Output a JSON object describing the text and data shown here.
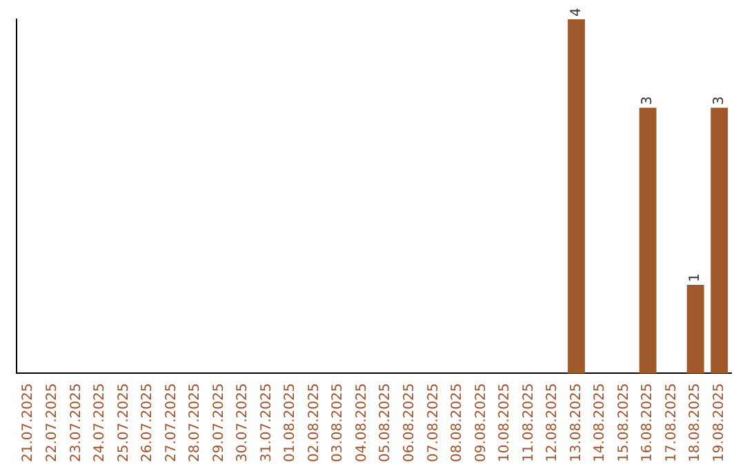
{
  "chart_data": {
    "type": "bar",
    "categories": [
      "21.07.2025",
      "22.07.2025",
      "23.07.2025",
      "24.07.2025",
      "25.07.2025",
      "26.07.2025",
      "27.07.2025",
      "28.07.2025",
      "29.07.2025",
      "30.07.2025",
      "31.07.2025",
      "01.08.2025",
      "02.08.2025",
      "03.08.2025",
      "04.08.2025",
      "05.08.2025",
      "06.08.2025",
      "07.08.2025",
      "08.08.2025",
      "09.08.2025",
      "10.08.2025",
      "11.08.2025",
      "12.08.2025",
      "13.08.2025",
      "14.08.2025",
      "15.08.2025",
      "16.08.2025",
      "17.08.2025",
      "18.08.2025",
      "19.08.2025"
    ],
    "values": [
      null,
      null,
      null,
      null,
      null,
      null,
      null,
      null,
      null,
      null,
      null,
      null,
      null,
      null,
      null,
      null,
      null,
      null,
      null,
      null,
      null,
      null,
      null,
      4,
      null,
      null,
      3,
      null,
      1,
      3
    ],
    "data_labels": true,
    "color": "#a0592a",
    "tick_labels": "x",
    "grid": false,
    "legend": false
  }
}
